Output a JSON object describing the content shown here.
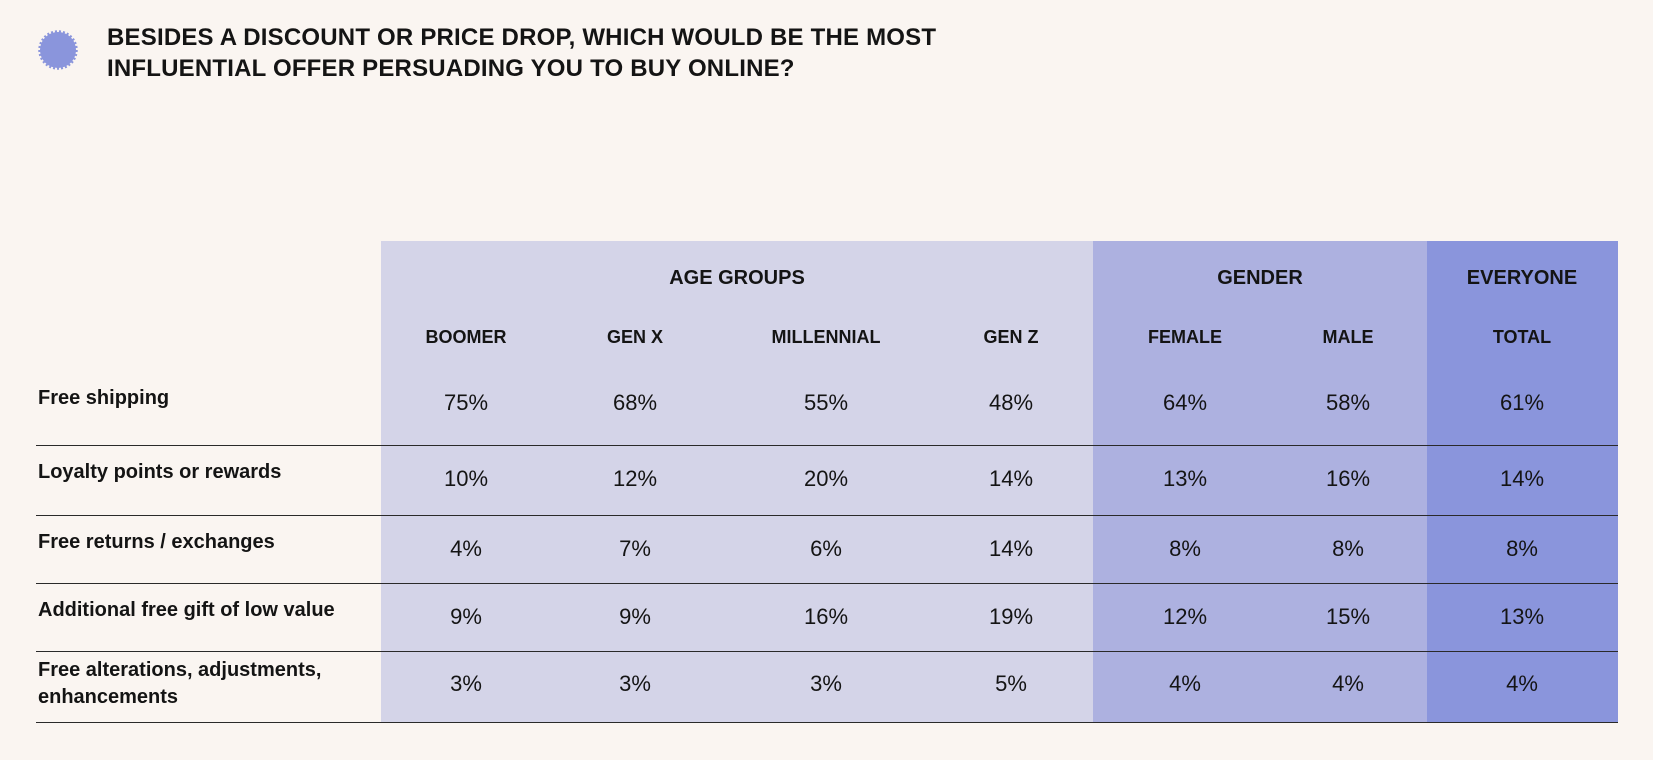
{
  "title_lines": [
    "BESIDES A DISCOUNT OR PRICE DROP, WHICH WOULD BE THE MOST",
    "INFLUENTIAL OFFER PERSUADING YOU TO BUY ONLINE?"
  ],
  "colors": {
    "background": "#faf5f1",
    "age_band": "#d4d4e8",
    "gender_band": "#adb1e0",
    "everyone_band": "#8a95dc",
    "badge": "#8a95dc"
  },
  "chart_data": {
    "type": "table",
    "groups": [
      {
        "label": "AGE GROUPS",
        "columns": [
          "BOOMER",
          "GEN X",
          "MILLENNIAL",
          "GEN Z"
        ]
      },
      {
        "label": "GENDER",
        "columns": [
          "FEMALE",
          "MALE"
        ]
      },
      {
        "label": "EVERYONE",
        "columns": [
          "TOTAL"
        ]
      }
    ],
    "columns": [
      "BOOMER",
      "GEN X",
      "MILLENNIAL",
      "GEN Z",
      "FEMALE",
      "MALE",
      "TOTAL"
    ],
    "rows": [
      {
        "label": "Free shipping",
        "values": [
          "75%",
          "68%",
          "55%",
          "48%",
          "64%",
          "58%",
          "61%"
        ]
      },
      {
        "label": "Loyalty points or rewards",
        "values": [
          "10%",
          "12%",
          "20%",
          "14%",
          "13%",
          "16%",
          "14%"
        ]
      },
      {
        "label": "Free returns / exchanges",
        "values": [
          "4%",
          "7%",
          "6%",
          "14%",
          "8%",
          "8%",
          "8%"
        ]
      },
      {
        "label": "Additional free gift of low value",
        "values": [
          "9%",
          "9%",
          "16%",
          "19%",
          "12%",
          "15%",
          "13%"
        ]
      },
      {
        "label": "Free alterations, adjustments, enhancements",
        "values": [
          "3%",
          "3%",
          "3%",
          "5%",
          "4%",
          "4%",
          "4%"
        ]
      }
    ]
  }
}
